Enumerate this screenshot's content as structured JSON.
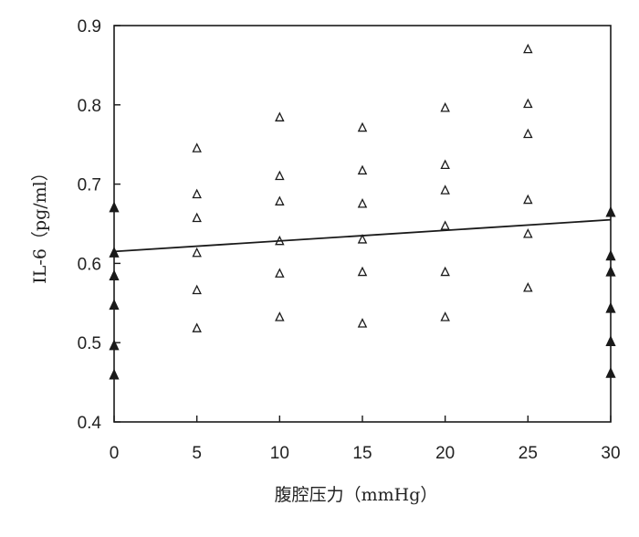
{
  "chart_data": {
    "type": "scatter",
    "title": "",
    "xlabel": "腹腔压力（mmHg）",
    "ylabel": "IL-6（pg/ml）",
    "xlim": [
      0,
      30
    ],
    "ylim": [
      0.4,
      0.9
    ],
    "x_ticks": [
      "0",
      "5",
      "10",
      "15",
      "20",
      "25",
      "30"
    ],
    "y_ticks": [
      "0.4",
      "0.5",
      "0.6",
      "0.7",
      "0.8",
      "0.9"
    ],
    "grid": false,
    "legend": "none",
    "colors": {
      "ink": "#1a1a1a"
    },
    "series": [
      {
        "marker": "open-triangle",
        "points": [
          {
            "x": 5,
            "y": 0.745
          },
          {
            "x": 5,
            "y": 0.687
          },
          {
            "x": 5,
            "y": 0.657
          },
          {
            "x": 5,
            "y": 0.613
          },
          {
            "x": 5,
            "y": 0.566
          },
          {
            "x": 5,
            "y": 0.518
          },
          {
            "x": 10,
            "y": 0.784
          },
          {
            "x": 10,
            "y": 0.71
          },
          {
            "x": 10,
            "y": 0.678
          },
          {
            "x": 10,
            "y": 0.628
          },
          {
            "x": 10,
            "y": 0.587
          },
          {
            "x": 10,
            "y": 0.532
          },
          {
            "x": 15,
            "y": 0.771
          },
          {
            "x": 15,
            "y": 0.717
          },
          {
            "x": 15,
            "y": 0.675
          },
          {
            "x": 15,
            "y": 0.63
          },
          {
            "x": 15,
            "y": 0.589
          },
          {
            "x": 15,
            "y": 0.524
          },
          {
            "x": 20,
            "y": 0.796
          },
          {
            "x": 20,
            "y": 0.724
          },
          {
            "x": 20,
            "y": 0.692
          },
          {
            "x": 20,
            "y": 0.647
          },
          {
            "x": 20,
            "y": 0.589
          },
          {
            "x": 20,
            "y": 0.532
          },
          {
            "x": 25,
            "y": 0.87
          },
          {
            "x": 25,
            "y": 0.801
          },
          {
            "x": 25,
            "y": 0.763
          },
          {
            "x": 25,
            "y": 0.68
          },
          {
            "x": 25,
            "y": 0.637
          },
          {
            "x": 25,
            "y": 0.569
          }
        ]
      },
      {
        "marker": "filled-triangle",
        "points": [
          {
            "x": 0,
            "y": 0.67
          },
          {
            "x": 0,
            "y": 0.613
          },
          {
            "x": 0,
            "y": 0.584
          },
          {
            "x": 0,
            "y": 0.547
          },
          {
            "x": 0,
            "y": 0.496
          },
          {
            "x": 0,
            "y": 0.459
          },
          {
            "x": 30,
            "y": 0.664
          },
          {
            "x": 30,
            "y": 0.609
          },
          {
            "x": 30,
            "y": 0.589
          },
          {
            "x": 30,
            "y": 0.543
          },
          {
            "x": 30,
            "y": 0.501
          },
          {
            "x": 30,
            "y": 0.461
          }
        ]
      },
      {
        "type": "line",
        "points": [
          {
            "x": 0,
            "y": 0.615
          },
          {
            "x": 30,
            "y": 0.655
          }
        ]
      }
    ]
  }
}
